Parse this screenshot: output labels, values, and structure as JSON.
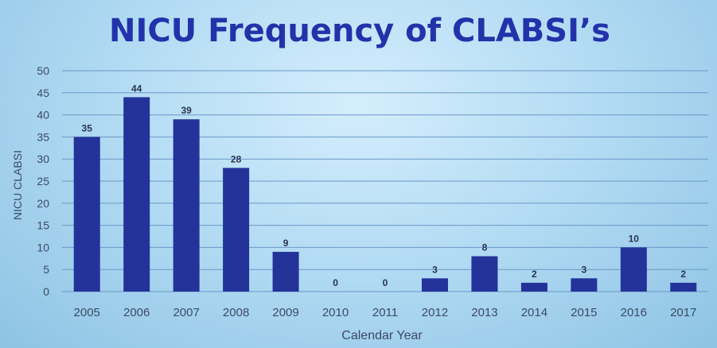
{
  "chart_data": {
    "type": "bar",
    "title": "NICU Frequency of CLABSI’s",
    "xlabel": "Calendar Year",
    "ylabel": "NICU CLABSI",
    "categories": [
      "2005",
      "2006",
      "2007",
      "2008",
      "2009",
      "2010",
      "2011",
      "2012",
      "2013",
      "2014",
      "2015",
      "2016",
      "2017"
    ],
    "values": [
      35,
      44,
      39,
      28,
      9,
      0,
      0,
      3,
      8,
      2,
      3,
      10,
      2
    ],
    "ylim": [
      0,
      50
    ],
    "yticks": [
      0,
      5,
      10,
      15,
      20,
      25,
      30,
      35,
      40,
      45,
      50
    ],
    "grid": true,
    "bar_color": "#23339a",
    "title_color": "#2233aa"
  }
}
